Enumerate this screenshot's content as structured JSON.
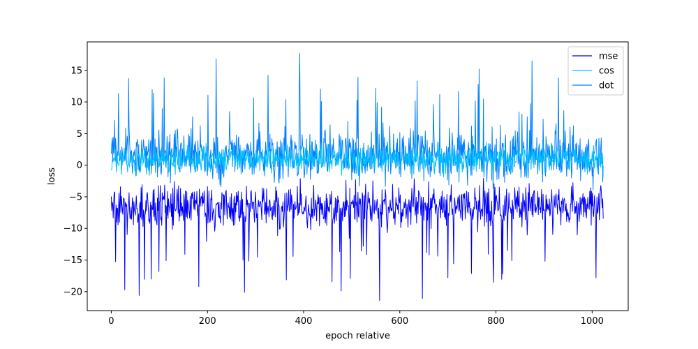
{
  "chart_data": {
    "type": "line",
    "title": "",
    "xlabel": "epoch relative",
    "ylabel": "loss",
    "xlim": [
      -50,
      1075
    ],
    "ylim": [
      -23,
      19.5
    ],
    "xticks": [
      0,
      200,
      400,
      600,
      800,
      1000
    ],
    "yticks": [
      -20,
      -15,
      -10,
      -5,
      0,
      5,
      10,
      15
    ],
    "xtick_labels": [
      "0",
      "200",
      "400",
      "600",
      "800",
      "1000"
    ],
    "ytick_labels": [
      "−20",
      "−15",
      "−10",
      "−5",
      "0",
      "5",
      "10",
      "15"
    ],
    "grid": false,
    "legend_position": "upper right",
    "x_range": [
      0,
      1023
    ],
    "series": [
      {
        "name": "mse",
        "color": "#0000ff",
        "num_points": 1024,
        "approx_center": -6.5,
        "approx_typical_range": [
          -12.5,
          -3
        ],
        "notable_points": [
          {
            "x": 28,
            "y": -19.7
          },
          {
            "x": 58,
            "y": -20.6
          },
          {
            "x": 182,
            "y": -19.2
          },
          {
            "x": 277,
            "y": -20.1
          },
          {
            "x": 478,
            "y": -19.9
          },
          {
            "x": 558,
            "y": -21.4
          },
          {
            "x": 647,
            "y": -21.1
          },
          {
            "x": 795,
            "y": -18.5
          },
          {
            "x": 1008,
            "y": -17.8
          }
        ]
      },
      {
        "name": "cos",
        "color": "#00bfff",
        "num_points": 1024,
        "approx_center": 1.0,
        "approx_typical_range": [
          -2,
          4
        ]
      },
      {
        "name": "dot",
        "color": "#0080ff",
        "num_points": 1024,
        "approx_center": 1.5,
        "approx_typical_range": [
          -4,
          7
        ],
        "notable_points": [
          {
            "x": 36,
            "y": 13.7
          },
          {
            "x": 110,
            "y": 13.8
          },
          {
            "x": 218,
            "y": 16.8
          },
          {
            "x": 326,
            "y": 14.2
          },
          {
            "x": 392,
            "y": 17.7
          },
          {
            "x": 513,
            "y": 13.9
          },
          {
            "x": 636,
            "y": 13.3
          },
          {
            "x": 765,
            "y": 15.2
          },
          {
            "x": 875,
            "y": 16.5
          },
          {
            "x": 930,
            "y": 13.8
          }
        ]
      }
    ]
  }
}
